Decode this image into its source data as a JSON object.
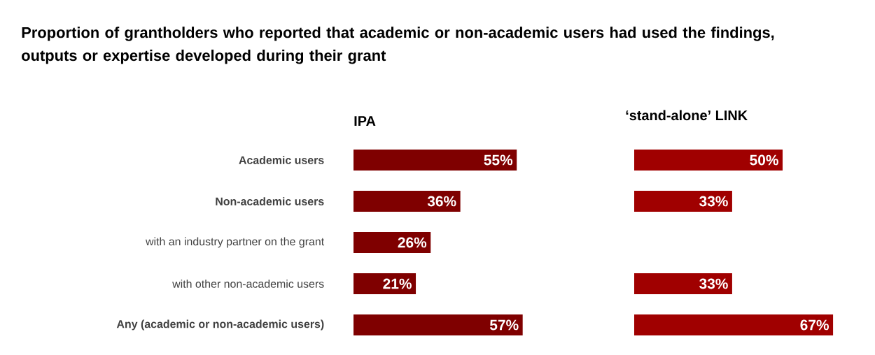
{
  "chart_data": [
    {
      "type": "bar",
      "orientation": "horizontal",
      "title": "Proportion of grantholders who reported that academic or non-academic users had used the findings, outputs or expertise developed during their grant",
      "subtitle": "IPA",
      "categories": [
        "**Academic users**",
        "**Non-academic users**",
        "with an industry partner on the grant",
        "with other non-academic users",
        "**Any (academic or non-academic users)**"
      ],
      "values": [
        55,
        36,
        26,
        21,
        57
      ],
      "value_labels": [
        "55%",
        "36%",
        "26%",
        "21%",
        "57%"
      ],
      "color": "#7f0000",
      "tick_labels": "y"
    },
    {
      "type": "bar",
      "orientation": "horizontal",
      "title": "‘stand-alone’ LINK",
      "categories": [
        null,
        null,
        null,
        null,
        null
      ],
      "values": [
        50,
        33,
        null,
        33,
        67
      ],
      "value_labels": [
        "50%",
        "33%",
        null,
        "33%",
        "67%"
      ],
      "color": "#a00000",
      "tick_labels": false
    }
  ]
}
